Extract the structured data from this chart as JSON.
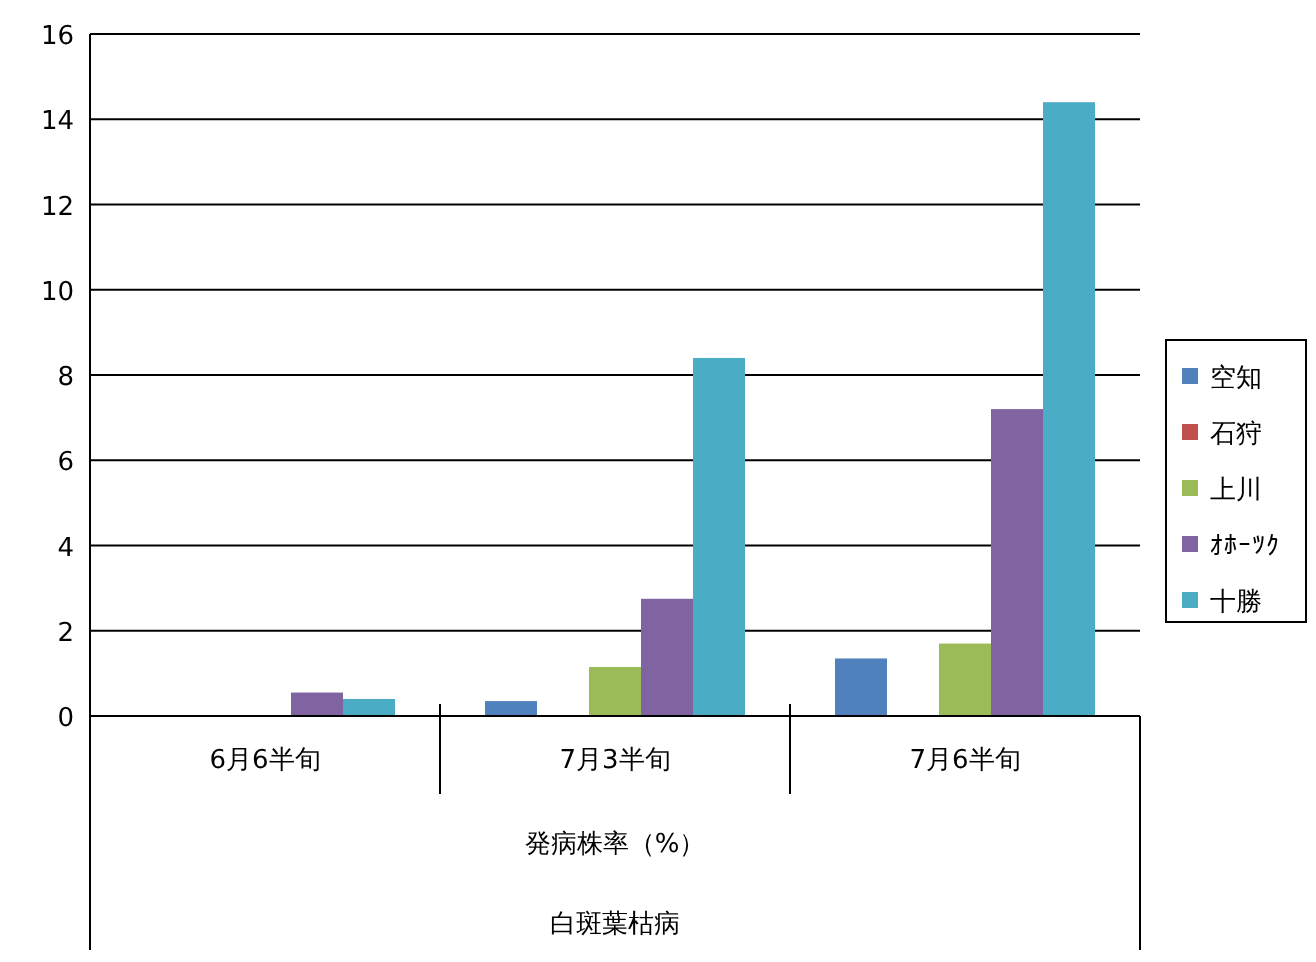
{
  "chart_data": {
    "type": "bar",
    "categories": [
      "6月6半旬",
      "7月3半旬",
      "7月6半旬"
    ],
    "xlabel": "発病株率（%）",
    "annotations": [
      "白斑葉枯病"
    ],
    "series": [
      {
        "name": "空知",
        "color": "#4f81bd",
        "values": [
          0,
          0.35,
          1.35
        ]
      },
      {
        "name": "石狩",
        "color": "#c0504d",
        "values": [
          0,
          0,
          0
        ]
      },
      {
        "name": "上川",
        "color": "#9bbb59",
        "values": [
          0,
          1.15,
          1.7
        ]
      },
      {
        "name": "ｵﾎｰﾂｸ",
        "color": "#8064a2",
        "values": [
          0.55,
          2.75,
          7.2
        ]
      },
      {
        "name": "十勝",
        "color": "#4bacc6",
        "values": [
          0.4,
          8.4,
          14.4
        ]
      }
    ],
    "ylim": [
      0,
      16
    ],
    "yticks": [
      0,
      2,
      4,
      6,
      8,
      10,
      12,
      14,
      16
    ],
    "grid": "y",
    "legend": "right"
  }
}
